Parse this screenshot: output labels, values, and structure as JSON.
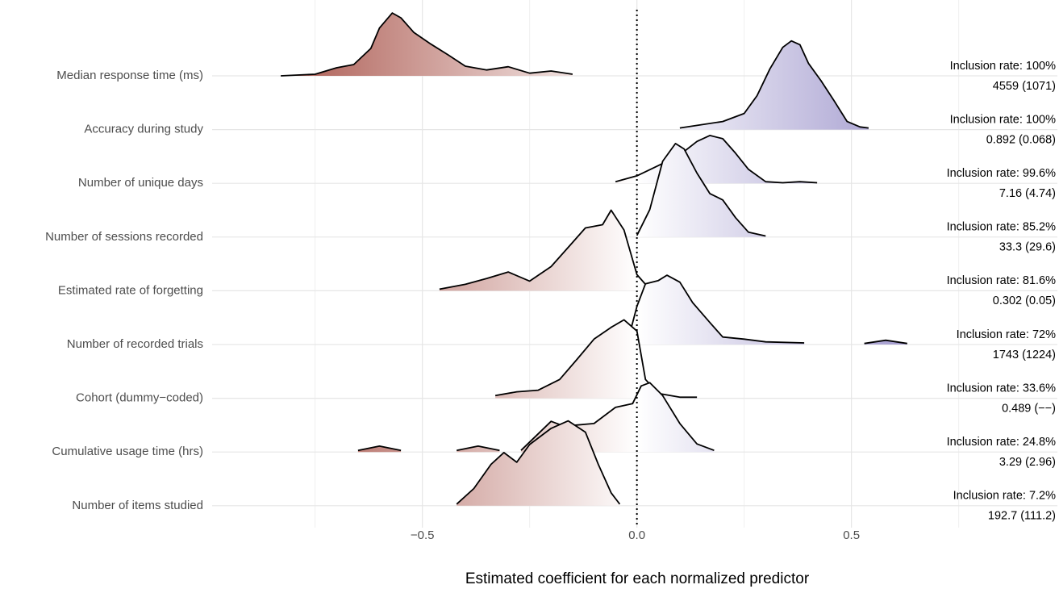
{
  "chart_data": {
    "type": "ridgeline",
    "x_label": "Estimated coefficient for each normalized predictor",
    "xlim": [
      -0.99,
      0.98
    ],
    "xticks": [
      {
        "value": -0.5,
        "label": "−0.5"
      },
      {
        "value": 0,
        "label": "0.0"
      },
      0.5
    ],
    "minor_xticks": [
      -0.75,
      -0.25,
      0.25,
      0.75
    ],
    "grid": true,
    "reference_line": 0,
    "fill_colors": {
      "low": "#9c3b30",
      "mid": "#ffffff",
      "high": "#6f63b3"
    },
    "series": [
      {
        "name": "Median response time (ms)",
        "inclusion": "Inclusion rate: 100%",
        "summary": "4559 (1071)",
        "x": [
          -0.83,
          -0.75,
          -0.7,
          -0.66,
          -0.62,
          -0.6,
          -0.57,
          -0.55,
          -0.52,
          -0.48,
          -0.44,
          -0.4,
          -0.35,
          -0.3,
          -0.25,
          -0.2,
          -0.15
        ],
        "density": [
          0,
          0.03,
          0.15,
          0.21,
          0.51,
          0.89,
          1.17,
          1.08,
          0.81,
          0.59,
          0.39,
          0.18,
          0.11,
          0.17,
          0.05,
          0.09,
          0.03
        ]
      },
      {
        "name": "Accuracy during study",
        "inclusion": "Inclusion rate: 100%",
        "summary": "0.892 (0.068)",
        "x": [
          0.1,
          0.2,
          0.25,
          0.28,
          0.31,
          0.34,
          0.36,
          0.38,
          0.4,
          0.43,
          0.46,
          0.49,
          0.52,
          0.54
        ],
        "density": [
          0.03,
          0.15,
          0.3,
          0.63,
          1.13,
          1.53,
          1.65,
          1.58,
          1.23,
          0.9,
          0.53,
          0.15,
          0.05,
          0.03
        ]
      },
      {
        "name": "Number of unique days",
        "inclusion": "Inclusion rate: 99.6%",
        "summary": "7.16 (4.74)",
        "x": [
          -0.05,
          0.0,
          0.05,
          0.1,
          0.14,
          0.17,
          0.2,
          0.23,
          0.26,
          0.3,
          0.34,
          0.38,
          0.42
        ],
        "density": [
          0.03,
          0.14,
          0.33,
          0.53,
          0.78,
          0.89,
          0.83,
          0.56,
          0.26,
          0.03,
          0.01,
          0.03,
          0.01
        ]
      },
      {
        "name": "Number of sessions recorded",
        "inclusion": "Inclusion rate: 85.2%",
        "summary": "33.3 (29.6)",
        "x": [
          0.0,
          0.03,
          0.06,
          0.09,
          0.11,
          0.14,
          0.17,
          0.2,
          0.23,
          0.26,
          0.3
        ],
        "density": [
          0.03,
          0.51,
          1.41,
          1.74,
          1.64,
          1.19,
          0.81,
          0.69,
          0.36,
          0.09,
          0.02
        ]
      },
      {
        "name": "Estimated rate of forgetting",
        "inclusion": "Inclusion rate: 81.6%",
        "summary": "0.302 (0.05)",
        "x": [
          -0.46,
          -0.4,
          -0.35,
          -0.3,
          -0.25,
          -0.2,
          -0.15,
          -0.12,
          -0.08,
          -0.06,
          -0.03,
          0.0,
          0.03
        ],
        "density": [
          0.03,
          0.12,
          0.23,
          0.35,
          0.18,
          0.45,
          0.9,
          1.17,
          1.23,
          1.5,
          1.13,
          0.3,
          0.03
        ]
      },
      {
        "name": "Number of recorded trials",
        "inclusion": "Inclusion rate: 72%",
        "summary": "1743 (1224)",
        "x": [
          -0.02,
          0.0,
          0.02,
          0.05,
          0.07,
          0.1,
          0.13,
          0.17,
          0.2,
          0.25,
          0.3,
          0.39,
          null,
          0.53,
          0.58,
          0.63
        ],
        "density": [
          0.1,
          0.71,
          1.13,
          1.19,
          1.29,
          1.16,
          0.78,
          0.41,
          0.14,
          0.1,
          0.05,
          0.03,
          null,
          0.02,
          0.08,
          0.02
        ]
      },
      {
        "name": "Cohort (dummy−coded)",
        "inclusion": "Inclusion rate: 33.6%",
        "summary": "0.489 (−−)",
        "x": [
          -0.33,
          -0.28,
          -0.23,
          -0.18,
          -0.14,
          -0.1,
          -0.06,
          -0.03,
          0.0,
          0.02,
          0.05,
          0.1,
          0.14
        ],
        "density": [
          0.05,
          0.12,
          0.15,
          0.35,
          0.72,
          1.1,
          1.32,
          1.46,
          1.25,
          0.35,
          0.09,
          0.02,
          0.02
        ]
      },
      {
        "name": "Cumulative usage time (hrs)",
        "inclusion": "Inclusion rate: 24.8%",
        "summary": "3.29 (2.96)",
        "x": [
          -0.65,
          -0.6,
          -0.55,
          null,
          -0.42,
          -0.37,
          -0.32,
          null,
          -0.27,
          -0.2,
          -0.17,
          -0.1,
          -0.05,
          -0.01,
          0.01,
          0.03,
          0.06,
          0.1,
          0.14,
          0.18
        ],
        "density": [
          0.03,
          0.11,
          0.03,
          null,
          0.03,
          0.11,
          0.03,
          null,
          0.03,
          0.57,
          0.48,
          0.53,
          0.83,
          0.9,
          1.23,
          1.29,
          1.05,
          0.53,
          0.15,
          0.03
        ]
      },
      {
        "name": "Number of items studied",
        "inclusion": "Inclusion rate: 7.2%",
        "summary": "192.7 (111.2)",
        "x": [
          -0.42,
          -0.38,
          -0.34,
          -0.31,
          -0.28,
          -0.25,
          -0.2,
          -0.16,
          -0.12,
          -0.09,
          -0.06,
          -0.04
        ],
        "density": [
          0.03,
          0.32,
          0.77,
          0.99,
          0.81,
          1.14,
          1.44,
          1.58,
          1.37,
          0.77,
          0.24,
          0.03
        ]
      }
    ]
  }
}
